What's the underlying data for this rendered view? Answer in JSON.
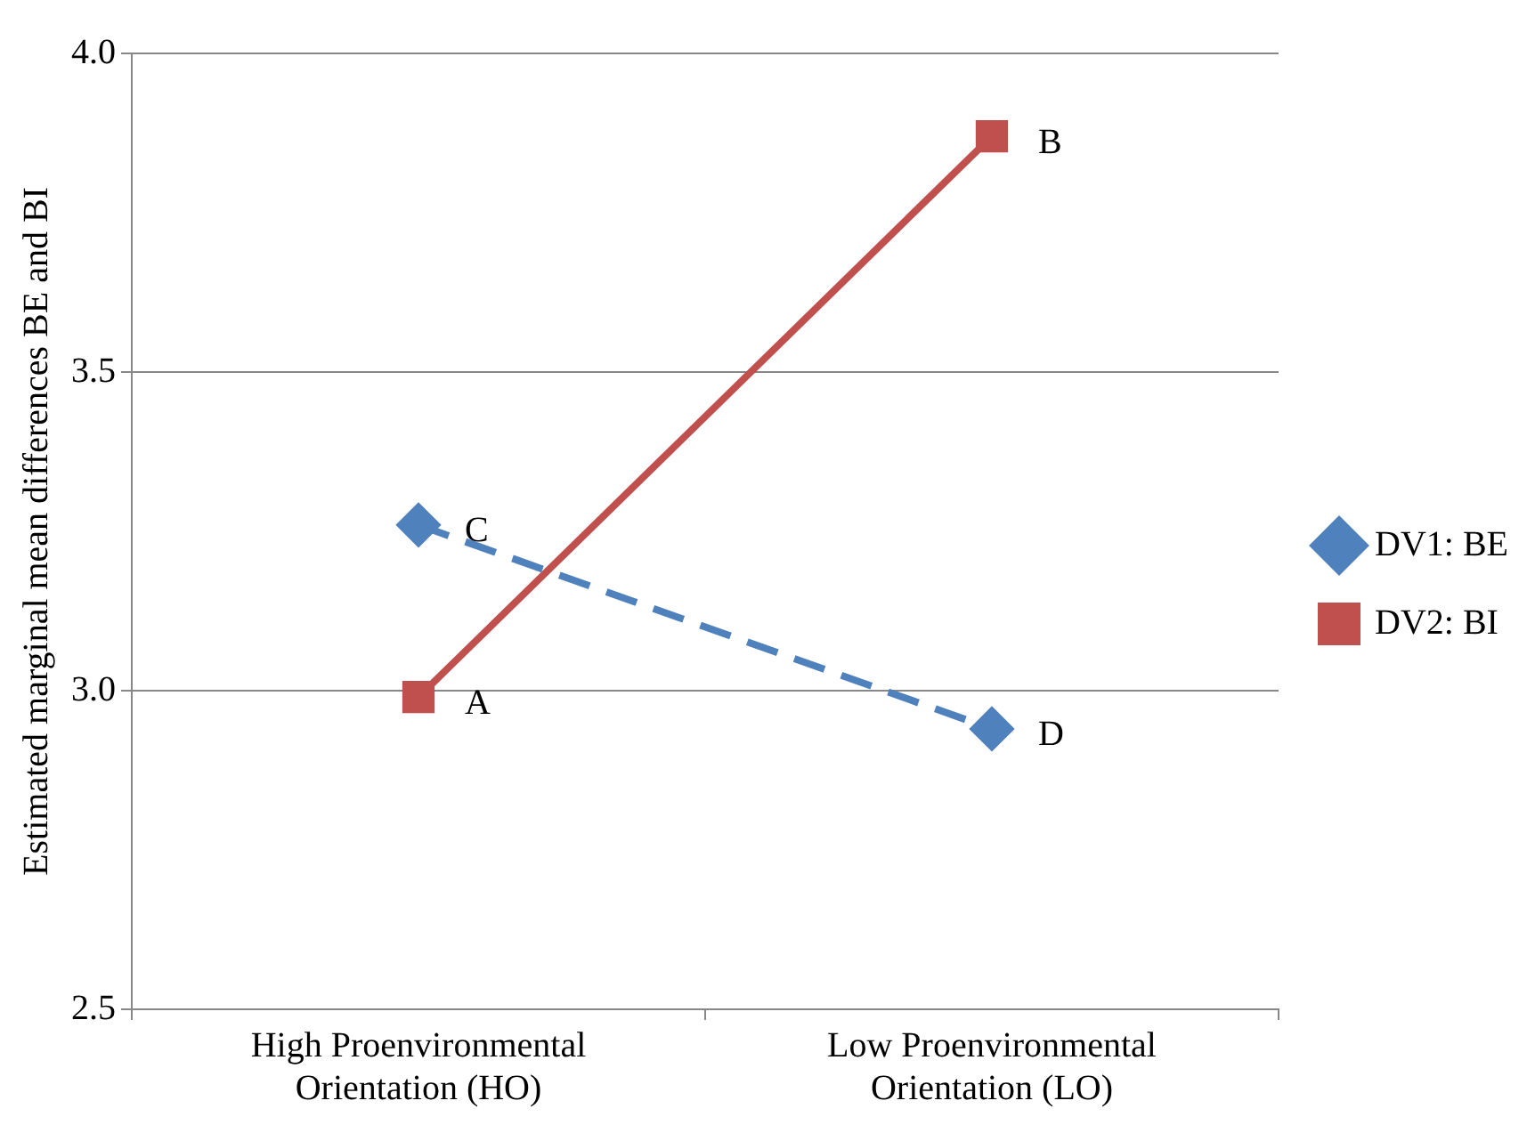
{
  "chart_data": {
    "type": "line",
    "ylabel": "Estimated marginal mean differences BE and BI",
    "categories": [
      "High Proenvironmental Orientation (HO)",
      "Low Proenvironmental Orientation (LO)"
    ],
    "series": [
      {
        "name": "DV1: BE",
        "color": "#4f81bd",
        "values": [
          3.26,
          2.94
        ],
        "marker": "diamond",
        "line_style": "dashed"
      },
      {
        "name": "DV2: BI",
        "color": "#c0504d",
        "values": [
          2.99,
          3.87
        ],
        "marker": "square",
        "line_style": "solid"
      }
    ],
    "ylim": [
      2.5,
      4.0
    ],
    "yticks": [
      2.5,
      {
        "value": 3,
        "label": "3.0"
      },
      3.5,
      {
        "value": 4,
        "label": "4.0"
      }
    ],
    "grid": "y",
    "legend": "right",
    "annotations": [
      {
        "text": "A",
        "x": "High Proenvironmental Orientation (HO)",
        "y": 2.99
      },
      {
        "text": "B",
        "x": "Low Proenvironmental Orientation (LO)",
        "y": 3.87
      },
      {
        "text": "C",
        "x": "High Proenvironmental Orientation (HO)",
        "y": 3.26
      },
      {
        "text": "D",
        "x": "Low Proenvironmental Orientation (LO)",
        "y": 2.94
      }
    ]
  }
}
